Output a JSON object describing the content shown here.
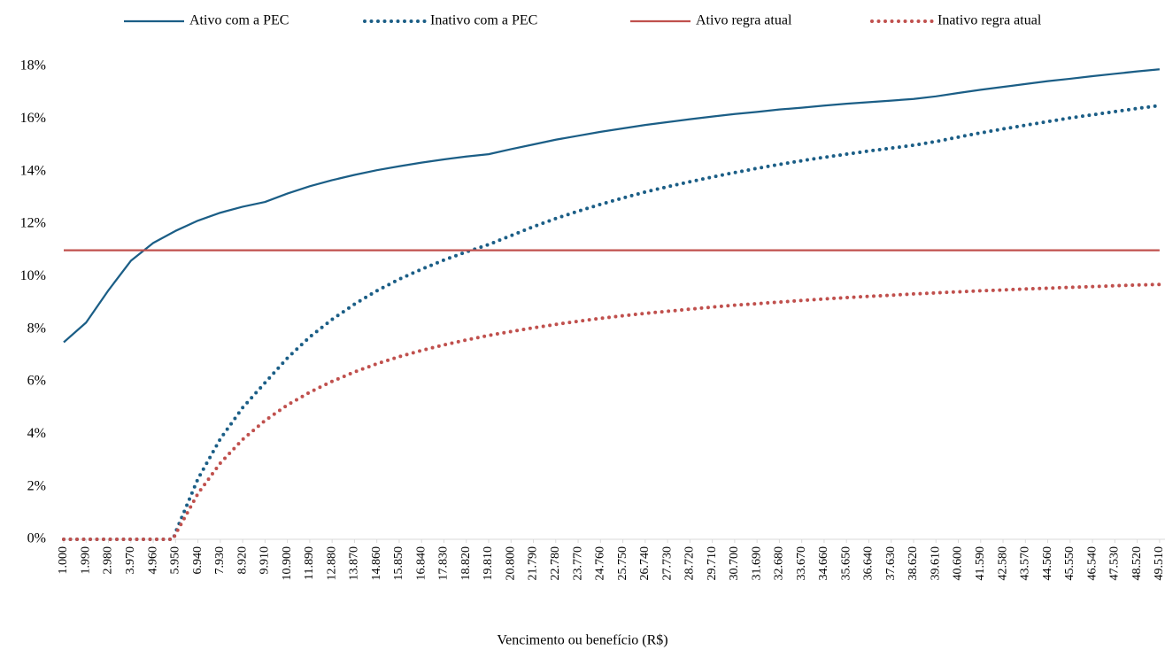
{
  "chart_data": {
    "type": "line",
    "xlabel": "Vencimento ou benefício (R$)",
    "x": [
      1000,
      1990,
      2980,
      3970,
      4960,
      5840,
      5950,
      6940,
      7930,
      8920,
      9910,
      10900,
      11890,
      12880,
      13870,
      14860,
      15850,
      16840,
      17830,
      18820,
      19810,
      20800,
      21790,
      22780,
      23770,
      24760,
      25750,
      26740,
      27730,
      28720,
      29710,
      30700,
      31690,
      32680,
      33670,
      34660,
      35650,
      36640,
      37630,
      38620,
      39610,
      40600,
      41590,
      42580,
      43570,
      44560,
      45550,
      46540,
      47530,
      48520,
      49510
    ],
    "xlim": [
      1000,
      49750
    ],
    "xticks": [
      {
        "value": 1000,
        "label": "1.000"
      },
      {
        "value": 1990,
        "label": "1.990"
      },
      {
        "value": 2980,
        "label": "2.980"
      },
      {
        "value": 3970,
        "label": "3.970"
      },
      {
        "value": 4960,
        "label": "4.960"
      },
      {
        "value": 5950,
        "label": "5.950"
      },
      {
        "value": 6940,
        "label": "6.940"
      },
      {
        "value": 7930,
        "label": "7.930"
      },
      {
        "value": 8920,
        "label": "8.920"
      },
      {
        "value": 9910,
        "label": "9.910"
      },
      {
        "value": 10900,
        "label": "10.900"
      },
      {
        "value": 11890,
        "label": "11.890"
      },
      {
        "value": 12880,
        "label": "12.880"
      },
      {
        "value": 13870,
        "label": "13.870"
      },
      {
        "value": 14860,
        "label": "14.860"
      },
      {
        "value": 15850,
        "label": "15.850"
      },
      {
        "value": 16840,
        "label": "16.840"
      },
      {
        "value": 17830,
        "label": "17.830"
      },
      {
        "value": 18820,
        "label": "18.820"
      },
      {
        "value": 19810,
        "label": "19.810"
      },
      {
        "value": 20800,
        "label": "20.800"
      },
      {
        "value": 21790,
        "label": "21.790"
      },
      {
        "value": 22780,
        "label": "22.780"
      },
      {
        "value": 23770,
        "label": "23.770"
      },
      {
        "value": 24760,
        "label": "24.760"
      },
      {
        "value": 25750,
        "label": "25.750"
      },
      {
        "value": 26740,
        "label": "26.740"
      },
      {
        "value": 27730,
        "label": "27.730"
      },
      {
        "value": 28720,
        "label": "28.720"
      },
      {
        "value": 29710,
        "label": "29.710"
      },
      {
        "value": 30700,
        "label": "30.700"
      },
      {
        "value": 31690,
        "label": "31.690"
      },
      {
        "value": 32680,
        "label": "32.680"
      },
      {
        "value": 33670,
        "label": "33.670"
      },
      {
        "value": 34660,
        "label": "34.660"
      },
      {
        "value": 35650,
        "label": "35.650"
      },
      {
        "value": 36640,
        "label": "36.640"
      },
      {
        "value": 37630,
        "label": "37.630"
      },
      {
        "value": 38620,
        "label": "38.620"
      },
      {
        "value": 39610,
        "label": "39.610"
      },
      {
        "value": 40600,
        "label": "40.600"
      },
      {
        "value": 41590,
        "label": "41.590"
      },
      {
        "value": 42580,
        "label": "42.580"
      },
      {
        "value": 43570,
        "label": "43.570"
      },
      {
        "value": 44560,
        "label": "44.560"
      },
      {
        "value": 45550,
        "label": "45.550"
      },
      {
        "value": 46540,
        "label": "46.540"
      },
      {
        "value": 47530,
        "label": "47.530"
      },
      {
        "value": 48520,
        "label": "48.520"
      },
      {
        "value": 49510,
        "label": "49.510"
      }
    ],
    "ylim": [
      0,
      18
    ],
    "yticks": [
      {
        "value": 0,
        "label": "0%"
      },
      {
        "value": 2,
        "label": "2%"
      },
      {
        "value": 4,
        "label": "4%"
      },
      {
        "value": 6,
        "label": "6%"
      },
      {
        "value": 8,
        "label": "8%"
      },
      {
        "value": 10,
        "label": "10%"
      },
      {
        "value": 12,
        "label": "12%"
      },
      {
        "value": 14,
        "label": "14%"
      },
      {
        "value": 16,
        "label": "16%"
      },
      {
        "value": 18,
        "label": "18%"
      }
    ],
    "legend": "top",
    "series": [
      {
        "name": "Ativo com a PEC",
        "color": "#1b5e86",
        "style": "solid",
        "values": [
          7.5,
          8.25,
          9.48,
          10.6,
          11.28,
          11.69,
          11.74,
          12.13,
          12.43,
          12.66,
          12.84,
          13.16,
          13.44,
          13.67,
          13.87,
          14.05,
          14.2,
          14.34,
          14.46,
          14.57,
          14.66,
          14.85,
          15.03,
          15.21,
          15.36,
          15.51,
          15.64,
          15.77,
          15.88,
          15.99,
          16.09,
          16.19,
          16.27,
          16.36,
          16.43,
          16.51,
          16.58,
          16.64,
          16.7,
          16.76,
          16.86,
          16.99,
          17.11,
          17.22,
          17.33,
          17.44,
          17.53,
          17.63,
          17.72,
          17.81,
          17.89
        ]
      },
      {
        "name": "Inativo com a PEC",
        "color": "#1b5e86",
        "style": "dotted",
        "values": [
          0,
          0,
          0,
          0,
          0,
          0,
          0.27,
          2.3,
          3.82,
          5.01,
          5.96,
          6.9,
          7.7,
          8.37,
          8.95,
          9.46,
          9.9,
          10.28,
          10.63,
          10.94,
          11.22,
          11.56,
          11.9,
          12.21,
          12.49,
          12.75,
          12.99,
          13.22,
          13.42,
          13.61,
          13.79,
          13.96,
          14.12,
          14.27,
          14.41,
          14.54,
          14.66,
          14.78,
          14.89,
          15.0,
          15.14,
          15.31,
          15.47,
          15.62,
          15.76,
          15.9,
          16.04,
          16.16,
          16.28,
          16.4,
          16.51
        ]
      },
      {
        "name": "Ativo regra atual",
        "color": "#c0504d",
        "style": "solid",
        "values": [
          11,
          11,
          11,
          11,
          11,
          11,
          11,
          11,
          11,
          11,
          11,
          11,
          11,
          11,
          11,
          11,
          11,
          11,
          11,
          11,
          11,
          11,
          11,
          11,
          11,
          11,
          11,
          11,
          11,
          11,
          11,
          11,
          11,
          11,
          11,
          11,
          11,
          11,
          11,
          11,
          11,
          11,
          11,
          11,
          11,
          11,
          11,
          11,
          11,
          11,
          11
        ]
      },
      {
        "name": "Inativo regra atual",
        "color": "#c0504d",
        "style": "dotted",
        "values": [
          0,
          0,
          0,
          0,
          0,
          0,
          0.2,
          1.74,
          2.9,
          3.8,
          4.52,
          5.11,
          5.6,
          6.01,
          6.37,
          6.68,
          6.95,
          7.19,
          7.4,
          7.59,
          7.76,
          7.91,
          8.05,
          8.18,
          8.3,
          8.41,
          8.51,
          8.6,
          8.68,
          8.76,
          8.84,
          8.91,
          8.97,
          9.03,
          9.09,
          9.15,
          9.2,
          9.25,
          9.29,
          9.34,
          9.38,
          9.42,
          9.46,
          9.49,
          9.53,
          9.56,
          9.59,
          9.62,
          9.65,
          9.68,
          9.7
        ]
      }
    ]
  }
}
